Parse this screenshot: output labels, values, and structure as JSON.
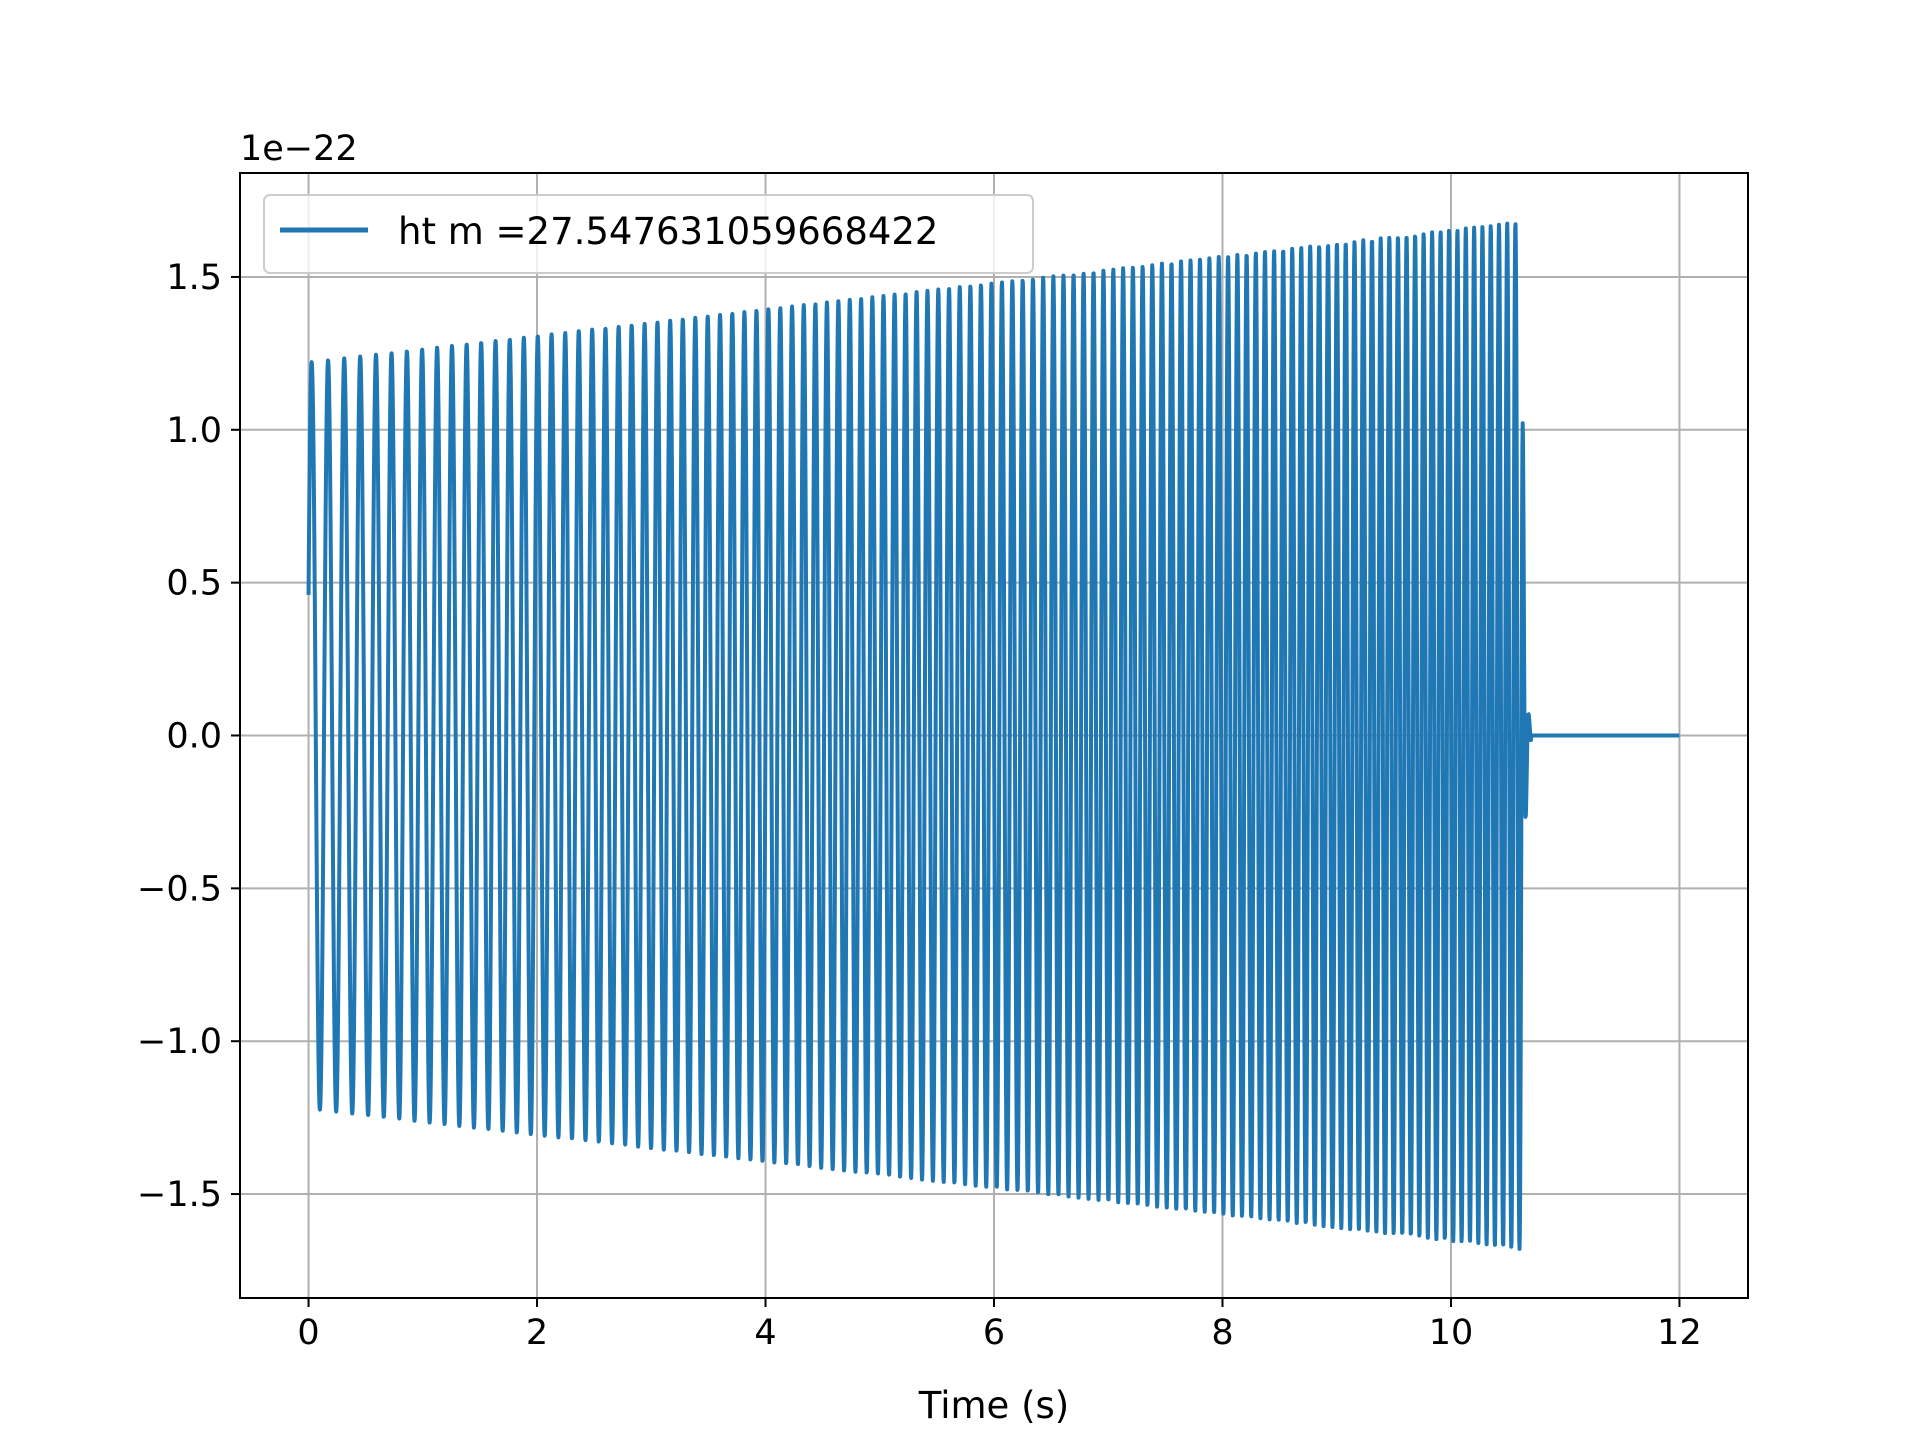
{
  "chart_data": {
    "type": "line",
    "title": "",
    "xlabel": "Time (s)",
    "ylabel": "",
    "y_offset_label": "1e−22",
    "y_scale_exponent": -22,
    "xlim": [
      -0.6,
      12.6
    ],
    "ylim": [
      -1.84,
      1.84
    ],
    "xticks": [
      0,
      2,
      4,
      6,
      8,
      10,
      12
    ],
    "xtick_labels": [
      "0",
      "2",
      "4",
      "6",
      "8",
      "10",
      "12"
    ],
    "yticks": [
      1.5,
      1.0,
      0.5,
      0.0,
      -0.5,
      -1.0,
      -1.5
    ],
    "ytick_labels": [
      "1.5",
      "1.0",
      "0.5",
      "0.0",
      "−0.5",
      "−1.0",
      "−1.5"
    ],
    "grid": true,
    "legend": {
      "location": "upper left"
    },
    "series": [
      {
        "name": "ht m =27.547631059668422",
        "color": "#1f77b4",
        "waveform": {
          "t_start": 0.0,
          "t_merger": 10.62,
          "t_ringdown_end": 10.7,
          "t_end": 12.0,
          "amplitude_start": 1.22,
          "amplitude_peak": 1.68,
          "frequency_start_hz": 6.9,
          "frequency_end_hz": 14.0,
          "initial_value": 0.46
        }
      }
    ]
  }
}
